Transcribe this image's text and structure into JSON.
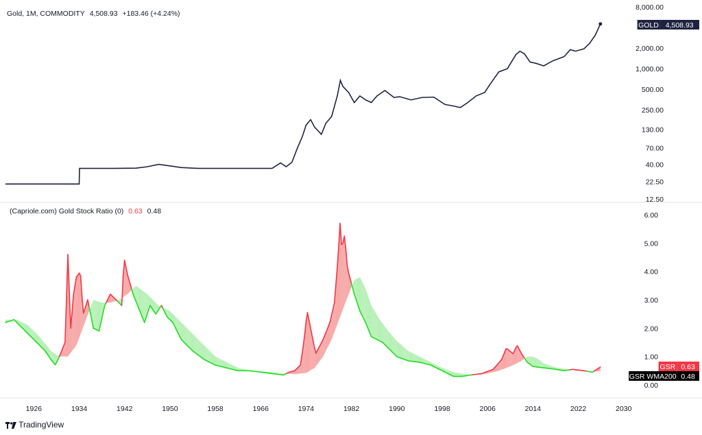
{
  "panel_top": {
    "symbol": "Gold, 1M, COMMODITY",
    "last": "4,508.93",
    "change": "+183.46 (+4.24%)",
    "price_tag_label": "GOLD",
    "price_tag_value": "4,508.93",
    "line_color": "#1e2240",
    "tag_color": "#1e2240"
  },
  "panel_bottom": {
    "indicator_name": "(Capriole.com) Gold Stock Ratio (0)",
    "gsr_value": "0.63",
    "wma_value": "0.48",
    "gsr_tag_label": "GSR",
    "gsr_tag_value": "0.63",
    "wma_tag_label": "GSR WMA200",
    "wma_tag_value": "0.48",
    "color_above": "#f23645",
    "color_below": "#22dd22",
    "fill_above": "#f7a8a8",
    "fill_below": "#b7f0b7"
  },
  "footer": {
    "brand": "TradingView",
    "brand_icon": "tradingview-logo-icon"
  },
  "chart_data": [
    {
      "type": "line",
      "title": "Gold, 1M, COMMODITY",
      "y_scale": "log",
      "ylim": [
        12.5,
        8000
      ],
      "y_ticks": [
        "12.50",
        "22.50",
        "40.00",
        "70.00",
        "130.00",
        "250.00",
        "500.00",
        "1,000.00",
        "2,000.00",
        "8,000.00"
      ],
      "y_tick_values": [
        12.5,
        22.5,
        40,
        70,
        130,
        250,
        500,
        1000,
        2000,
        8000
      ],
      "xlim": [
        1921,
        2031
      ],
      "series": [
        {
          "x": [
            1921,
            1925,
            1930,
            1934,
            1934.05,
            1940,
            1944,
            1946,
            1948,
            1950,
            1952,
            1955,
            1960,
            1965,
            1968,
            1969.5,
            1970.5,
            1971.5,
            1972.5,
            1973.3,
            1974,
            1974.8,
            1975.5,
            1976.7,
            1977.5,
            1978.5,
            1979.5,
            1980.05,
            1980.5,
            1981.5,
            1982.5,
            1983.5,
            1984.5,
            1985.5,
            1986.5,
            1987.9,
            1989.5,
            1990.5,
            1992.5,
            1994.5,
            1996.5,
            1998.5,
            2000,
            2001.2,
            2002.5,
            2004,
            2005.5,
            2006.5,
            2008,
            2009.5,
            2011,
            2011.7,
            2012.5,
            2013.5,
            2014.5,
            2015.9,
            2017.5,
            2019.5,
            2020.6,
            2021.5,
            2023,
            2024,
            2025,
            2025.9
          ],
          "y": [
            20.67,
            20.67,
            20.67,
            20.67,
            35,
            35,
            35.2,
            37,
            40,
            38,
            36,
            35,
            35,
            35,
            35,
            42,
            37,
            43,
            70,
            100,
            150,
            180,
            140,
            110,
            160,
            200,
            400,
            675,
            550,
            450,
            320,
            400,
            350,
            320,
            400,
            480,
            380,
            390,
            350,
            380,
            385,
            300,
            285,
            270,
            320,
            400,
            450,
            600,
            900,
            1000,
            1600,
            1800,
            1650,
            1250,
            1200,
            1100,
            1300,
            1500,
            1900,
            1800,
            1950,
            2350,
            3100,
            4508.93
          ]
        }
      ]
    },
    {
      "type": "area",
      "title": "(Capriole.com) Gold Stock Ratio (0)",
      "ylim": [
        0,
        6
      ],
      "y_ticks": [
        "0.00",
        "1.00",
        "2.00",
        "3.00",
        "4.00",
        "5.00",
        "6.00"
      ],
      "xlim": [
        1921,
        2031
      ],
      "x_ticks": [
        "1926",
        "1934",
        "1942",
        "1950",
        "1958",
        "1966",
        "1974",
        "1982",
        "1990",
        "1998",
        "2006",
        "2014",
        "2022",
        "2030"
      ],
      "series": [
        {
          "name": "GSR",
          "x": [
            1921,
            1922.5,
            1924,
            1926,
            1928,
            1929,
            1929.8,
            1930.5,
            1931.5,
            1932,
            1932.5,
            1933,
            1933.5,
            1934.2,
            1934.7,
            1935.5,
            1936.5,
            1937.5,
            1938.5,
            1939.5,
            1940.5,
            1941.5,
            1941.9,
            1942.5,
            1943.5,
            1944.5,
            1945.5,
            1946.5,
            1947.5,
            1948.5,
            1949.5,
            1950.5,
            1952,
            1954,
            1956,
            1958,
            1960,
            1962,
            1964,
            1966,
            1968,
            1970,
            1971,
            1972,
            1973,
            1973.6,
            1974.2,
            1975,
            1975.7,
            1977,
            1978.2,
            1979,
            1979.6,
            1980,
            1980.3,
            1980.8,
            1981.3,
            1982.5,
            1983.5,
            1984.5,
            1985.5,
            1986.5,
            1987.5,
            1988.5,
            1990,
            1992,
            1994,
            1996,
            1998,
            2000,
            2001.5,
            2003,
            2005,
            2007,
            2008.5,
            2009.3,
            2010.5,
            2011.2,
            2012,
            2013,
            2014,
            2016,
            2018,
            2019.5,
            2021,
            2023,
            2024.5,
            2025.9
          ],
          "y": [
            2.2,
            2.3,
            2.0,
            1.6,
            1.2,
            0.9,
            0.7,
            1.0,
            1.5,
            4.6,
            2.0,
            3.2,
            3.8,
            4.0,
            2.5,
            3.0,
            2.0,
            1.9,
            2.8,
            3.2,
            3.0,
            2.8,
            4.5,
            3.9,
            3.2,
            2.7,
            2.2,
            2.8,
            2.5,
            2.8,
            2.4,
            2.2,
            1.6,
            1.2,
            0.9,
            0.7,
            0.6,
            0.5,
            0.5,
            0.45,
            0.4,
            0.35,
            0.45,
            0.5,
            0.7,
            1.5,
            2.6,
            1.8,
            1.1,
            1.6,
            2.2,
            2.9,
            4.4,
            5.7,
            4.8,
            5.3,
            4.1,
            3.2,
            2.6,
            2.2,
            1.7,
            1.6,
            1.5,
            1.3,
            1.0,
            0.85,
            0.8,
            0.7,
            0.5,
            0.3,
            0.3,
            0.35,
            0.4,
            0.55,
            0.9,
            1.3,
            1.1,
            1.4,
            1.1,
            0.8,
            0.65,
            0.6,
            0.55,
            0.5,
            0.55,
            0.5,
            0.45,
            0.63
          ]
        },
        {
          "name": "GSR WMA200",
          "x": [
            1921,
            1923,
            1925,
            1927,
            1929,
            1930.5,
            1932,
            1933.5,
            1935,
            1936.5,
            1938,
            1939.5,
            1941,
            1942.5,
            1944,
            1946,
            1948,
            1950,
            1952,
            1954,
            1956,
            1958,
            1960,
            1962,
            1964,
            1966,
            1968,
            1970,
            1972,
            1974,
            1975.5,
            1977,
            1978.5,
            1980,
            1981.5,
            1982.5,
            1983.5,
            1984.5,
            1985.5,
            1987,
            1988.5,
            1990,
            1992,
            1994,
            1996,
            1998,
            2000,
            2002,
            2004,
            2006,
            2008,
            2010,
            2012,
            2013,
            2014,
            2015,
            2016,
            2018,
            2020,
            2022,
            2024,
            2025.9
          ],
          "y": [
            2.3,
            2.3,
            2.1,
            1.7,
            1.2,
            1.0,
            1.0,
            1.4,
            2.2,
            3.0,
            2.9,
            2.9,
            3.0,
            3.2,
            3.5,
            3.2,
            2.8,
            2.6,
            2.2,
            1.8,
            1.4,
            1.0,
            0.8,
            0.6,
            0.52,
            0.48,
            0.45,
            0.4,
            0.38,
            0.42,
            0.6,
            1.0,
            1.6,
            2.4,
            3.2,
            3.7,
            3.8,
            3.4,
            2.8,
            2.3,
            1.9,
            1.55,
            1.2,
            1.0,
            0.8,
            0.6,
            0.45,
            0.38,
            0.35,
            0.4,
            0.5,
            0.65,
            0.85,
            1.0,
            1.0,
            0.9,
            0.75,
            0.62,
            0.55,
            0.5,
            0.48,
            0.48
          ]
        }
      ]
    }
  ]
}
